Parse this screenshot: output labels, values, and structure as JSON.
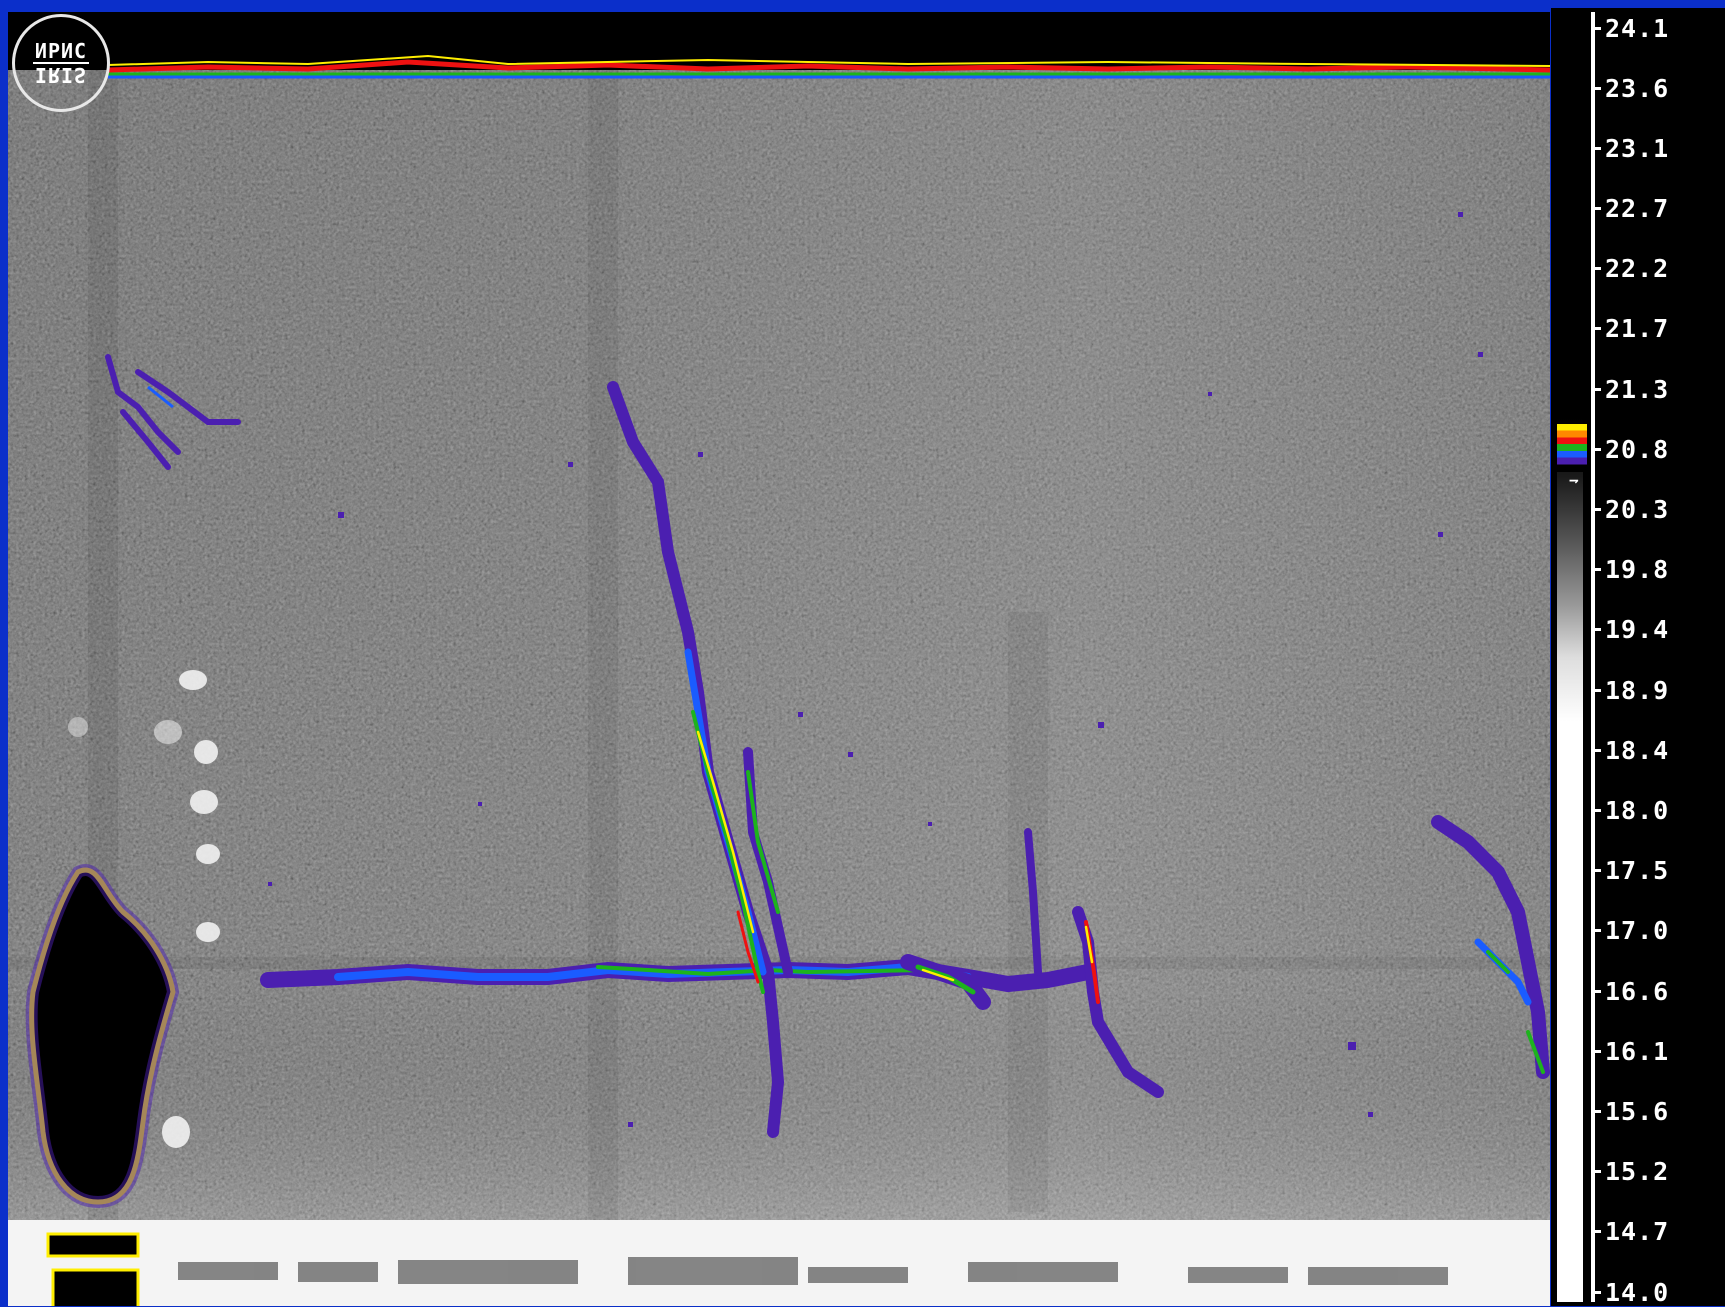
{
  "logo": {
    "line1": "ИРИС",
    "line2": "IRIS"
  },
  "temperature_scale": {
    "labels": [
      "24.1",
      "23.6",
      "23.1",
      "22.7",
      "22.2",
      "21.7",
      "21.3",
      "20.8",
      "20.3",
      "19.8",
      "19.4",
      "18.9",
      "18.4",
      "18.0",
      "17.5",
      "17.0",
      "16.6",
      "16.1",
      "15.6",
      "15.2",
      "14.7",
      "14.0"
    ],
    "highlight_colors": [
      "#ffee00",
      "#ff8800",
      "#ee1111",
      "#1db31d",
      "#1a5cff",
      "#4b1fb0"
    ],
    "threshold_marker_label": "20.8"
  },
  "colors": {
    "frame": "#0b2fca",
    "background_gray": "#8c8c8c",
    "hot_palette": [
      "#4b1fb0",
      "#1a5cff",
      "#1db31d",
      "#ffee00",
      "#ff8800",
      "#ee1111"
    ]
  }
}
